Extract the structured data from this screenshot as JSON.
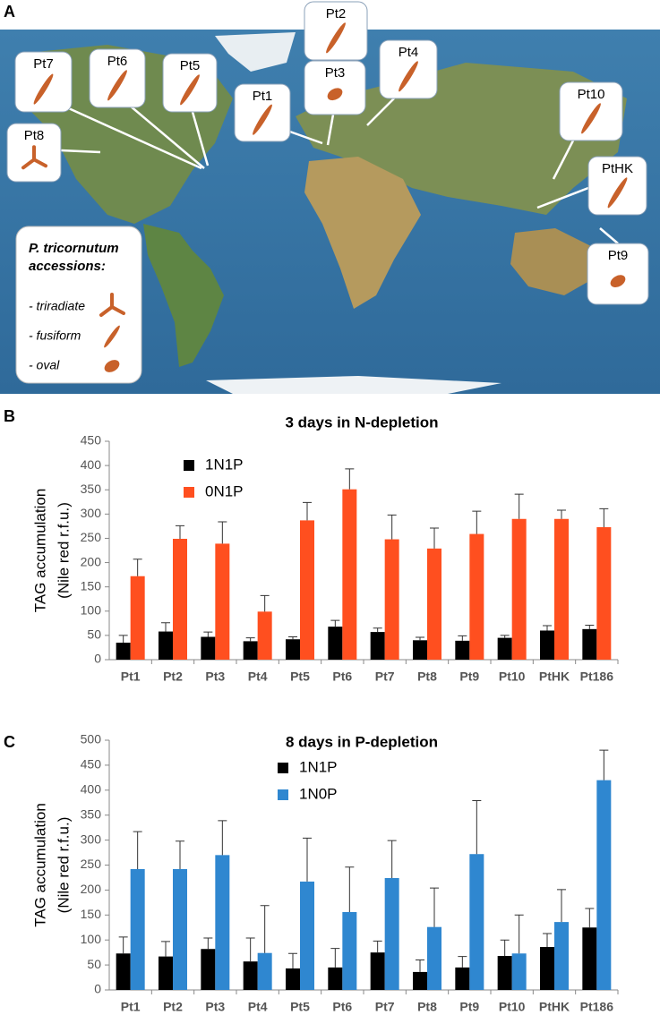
{
  "panel_labels": [
    "A",
    "B",
    "C"
  ],
  "map": {
    "callouts": [
      {
        "label": "Pt7",
        "shape": "fusiform"
      },
      {
        "label": "Pt6",
        "shape": "fusiform"
      },
      {
        "label": "Pt5",
        "shape": "fusiform"
      },
      {
        "label": "Pt1",
        "shape": "fusiform"
      },
      {
        "label": "Pt2",
        "shape": "fusiform"
      },
      {
        "label": "Pt3",
        "shape": "oval"
      },
      {
        "label": "Pt4",
        "shape": "fusiform"
      },
      {
        "label": "Pt10",
        "shape": "fusiform"
      },
      {
        "label": "Pt8",
        "shape": "triradiate"
      },
      {
        "label": "PtHK",
        "shape": "fusiform"
      },
      {
        "label": "Pt9",
        "shape": "oval"
      }
    ],
    "legend": {
      "title": [
        "P. tricornutum",
        "accessions:"
      ],
      "items": [
        "- triradiate",
        "- fusiform",
        "- oval"
      ]
    }
  },
  "chart_data": [
    {
      "type": "bar",
      "title": "3 days in N-depletion",
      "ylabel": [
        "TAG accumulation",
        "(Nile red r.f.u.)"
      ],
      "categories": [
        "Pt1",
        "Pt2",
        "Pt3",
        "Pt4",
        "Pt5",
        "Pt6",
        "Pt7",
        "Pt8",
        "Pt9",
        "Pt10",
        "PtHK",
        "Pt186"
      ],
      "series": [
        {
          "name": "1N1P",
          "color": "#000000",
          "values": [
            35,
            58,
            47,
            38,
            42,
            68,
            57,
            40,
            39,
            45,
            60,
            63
          ],
          "errors": [
            15,
            18,
            10,
            7,
            5,
            13,
            8,
            6,
            10,
            5,
            10,
            8
          ]
        },
        {
          "name": "0N1P",
          "color": "#ff4f1f",
          "values": [
            172,
            249,
            239,
            99,
            287,
            351,
            248,
            229,
            259,
            290,
            290,
            273
          ],
          "errors": [
            35,
            27,
            45,
            33,
            37,
            42,
            50,
            42,
            47,
            51,
            18,
            38
          ]
        }
      ],
      "ylim": [
        0,
        450
      ],
      "yticks": [
        0,
        50,
        100,
        150,
        200,
        250,
        300,
        350,
        400,
        450
      ],
      "grid": false
    },
    {
      "type": "bar",
      "title": "8 days in P-depletion",
      "ylabel": [
        "TAG accumulation",
        "(Nile red r.f.u.)"
      ],
      "categories": [
        "Pt1",
        "Pt2",
        "Pt3",
        "Pt4",
        "Pt5",
        "Pt6",
        "Pt7",
        "Pt8",
        "Pt9",
        "Pt10",
        "PtHK",
        "Pt186"
      ],
      "series": [
        {
          "name": "1N1P",
          "color": "#000000",
          "values": [
            73,
            67,
            82,
            57,
            43,
            45,
            75,
            36,
            45,
            68,
            86,
            125
          ],
          "errors": [
            33,
            30,
            22,
            47,
            30,
            38,
            23,
            24,
            22,
            32,
            27,
            38
          ]
        },
        {
          "name": "1N0P",
          "color": "#2f87d0",
          "values": [
            242,
            242,
            270,
            74,
            217,
            156,
            224,
            126,
            272,
            73,
            136,
            420
          ],
          "errors": [
            75,
            56,
            69,
            95,
            87,
            90,
            75,
            78,
            107,
            77,
            65,
            60
          ]
        }
      ],
      "ylim": [
        0,
        500
      ],
      "yticks": [
        0,
        50,
        100,
        150,
        200,
        250,
        300,
        350,
        400,
        450,
        500
      ],
      "grid": false
    }
  ]
}
